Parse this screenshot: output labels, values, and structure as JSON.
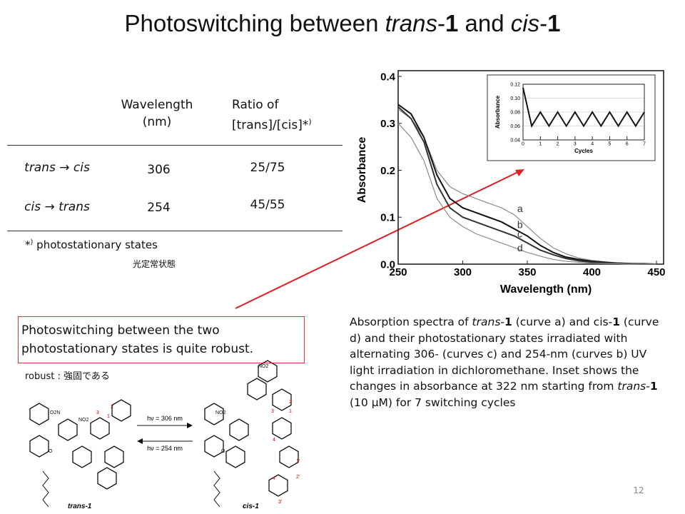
{
  "title": [
    "Photoswitching between ",
    "trans",
    "-",
    "1",
    " and ",
    "cis",
    "-",
    "1"
  ],
  "table": {
    "header": [
      [
        "Wavelength",
        "(nm)"
      ],
      [
        "Ratio of",
        "[trans]/[cis]*",
        ")"
      ]
    ],
    "rows": [
      [
        "trans → cis",
        306,
        "25/75"
      ],
      [
        "cis → trans",
        254,
        "45/55"
      ]
    ]
  },
  "footnote": {
    "mark": "*",
    "sup": ")",
    "text": " photostationary states",
    "japanese": "光定常状態"
  },
  "note_box": "Photoswitching between the two photostationary states is quite robust.",
  "robust_note": "robust : 強固である",
  "caption": [
    "Absorption spectra of ",
    "trans",
    "-",
    "1",
    " (curve a) and cis-",
    "1",
    " (curve d) and their photostationary states irradiated with alternating 306- (curves c) and 254-nm (curves b) UV light irradiation in dichloromethane. Inset shows the changes in absorbance at 322 nm starting from ",
    "trans",
    "-",
    "1",
    " (10 μM) for 7 switching cycles"
  ],
  "scheme": {
    "left_label": "trans-1",
    "right_label": "cis-1",
    "forward": "hν = 306 nm",
    "backward": "hν = 254 nm",
    "left_atoms": [
      "O2N",
      "NO2",
      "O",
      "1",
      "2",
      "3"
    ],
    "right_atoms": [
      "NO2",
      "NO2",
      "O",
      "1",
      "2",
      "3",
      "4",
      "1'",
      "2'",
      "3'",
      "4'"
    ]
  },
  "page_number": 12,
  "chart_data": [
    {
      "type": "line",
      "xlabel": "Wavelength (nm)",
      "ylabel": "Absorbance",
      "x": [
        250,
        260,
        270,
        280,
        290,
        300,
        310,
        320,
        330,
        340,
        350,
        360,
        370,
        380,
        390,
        400,
        410,
        420,
        430,
        440,
        450
      ],
      "series": [
        {
          "name": "a",
          "color": "#8a8a8a",
          "values": [
            0.33,
            0.31,
            0.27,
            0.2,
            0.165,
            0.15,
            0.14,
            0.13,
            0.12,
            0.105,
            0.08,
            0.055,
            0.035,
            0.022,
            0.013,
            0.008,
            0.005,
            0.003,
            0.002,
            0.001,
            0
          ]
        },
        {
          "name": "b",
          "color": "#111111",
          "values": [
            0.34,
            0.32,
            0.27,
            0.19,
            0.14,
            0.12,
            0.11,
            0.1,
            0.09,
            0.075,
            0.06,
            0.04,
            0.025,
            0.015,
            0.01,
            0.006,
            0.004,
            0.002,
            0.001,
            0.001,
            0
          ]
        },
        {
          "name": "c",
          "color": "#333333",
          "values": [
            0.335,
            0.31,
            0.26,
            0.17,
            0.12,
            0.1,
            0.09,
            0.08,
            0.07,
            0.06,
            0.045,
            0.03,
            0.02,
            0.012,
            0.007,
            0.004,
            0.003,
            0.002,
            0.001,
            0,
            0
          ]
        },
        {
          "name": "d",
          "color": "#8a8a8a",
          "values": [
            0.3,
            0.27,
            0.22,
            0.14,
            0.1,
            0.08,
            0.065,
            0.055,
            0.045,
            0.035,
            0.025,
            0.017,
            0.01,
            0.006,
            0.004,
            0.002,
            0.001,
            0.001,
            0,
            0,
            0
          ]
        }
      ],
      "xlim": [
        250,
        450
      ],
      "xticks": [
        250,
        300,
        350,
        400,
        450
      ],
      "ylim": [
        0,
        0.4
      ],
      "yticks": [
        {
          "value": 0,
          "label": "0.0"
        },
        0.1,
        0.2,
        0.3,
        0.4
      ]
    },
    {
      "type": "line",
      "xlabel": "Cycles",
      "ylabel": "Absorbance",
      "x": [
        0,
        0.5,
        1,
        1.5,
        2,
        2.5,
        3,
        3.5,
        4,
        4.5,
        5,
        5.5,
        6,
        6.5,
        7
      ],
      "values": [
        0.115,
        0.06,
        0.08,
        0.06,
        0.08,
        0.06,
        0.08,
        0.06,
        0.08,
        0.06,
        0.08,
        0.06,
        0.08,
        0.06,
        0.08
      ],
      "color": "#111111",
      "xlim": [
        0,
        7
      ],
      "xticks": [
        0,
        1,
        2,
        3,
        4,
        5,
        6,
        7
      ],
      "ylim": [
        0.04,
        0.12
      ],
      "yticks": [
        0.04,
        0.06,
        0.08,
        {
          "value": 0.1,
          "label": "0.10"
        },
        0.12
      ],
      "grid": true
    }
  ]
}
